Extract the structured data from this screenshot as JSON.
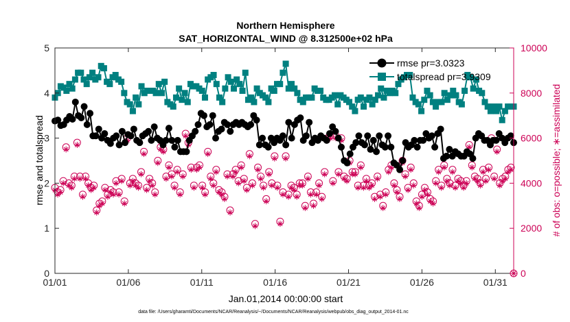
{
  "chart_data": {
    "type": "line",
    "title": "Northern Hemisphere",
    "subtitle": "SAT_HORIZONTAL_WIND @ 8.312500e+02 hPa",
    "xlabel": "Jan.01,2014 00:00:00 start",
    "ylabel_left": "rmse and totalspread",
    "ylabel_right": "# of obs: o=possible; ∗=assimilated",
    "footnote": "data file: /Users/gharamti/Documents/NCAR/Reanalysis/~/Documents/NCAR/Reanalysis/webpub/obs_diag_output_2014-01.nc",
    "xlim": [
      0,
      31.25
    ],
    "ylim_left": [
      0,
      5
    ],
    "ylim_right": [
      0,
      10000
    ],
    "xticks": [
      0,
      5,
      10,
      15,
      20,
      25,
      30
    ],
    "xtick_labels": [
      "01/01",
      "01/06",
      "01/11",
      "01/16",
      "01/21",
      "01/26",
      "01/31"
    ],
    "yticks_left": [
      "0",
      "1",
      "2",
      "3",
      "4",
      "5"
    ],
    "yticks_right": [
      "0",
      "2000",
      "4000",
      "6000",
      "8000",
      "10000"
    ],
    "grid": false,
    "legend_position": "top-right",
    "colors": {
      "rmse": "#000000",
      "totalspread": "#008080",
      "obs": "#cc0055"
    },
    "series": [
      {
        "name": "rmse pr=3.0323",
        "axis": "left",
        "marker": "circle",
        "values": [
          3.38,
          3.4,
          3.28,
          3.3,
          3.4,
          3.48,
          3.42,
          3.8,
          3.5,
          3.45,
          3.7,
          3.3,
          3.55,
          3.05,
          3.05,
          3.2,
          3.0,
          3.1,
          2.95,
          2.88,
          3.0,
          3.05,
          2.85,
          3.15,
          2.9,
          3.08,
          3.05,
          3.2,
          2.95,
          2.9,
          3.05,
          3.1,
          3.15,
          2.95,
          3.25,
          3.0,
          2.95,
          2.85,
          2.95,
          3.22,
          2.95,
          2.8,
          2.95,
          2.7,
          2.7,
          2.7,
          2.95,
          3.05,
          3.15,
          3.3,
          3.55,
          3.5,
          3.25,
          3.3,
          3.5,
          3.0,
          3.15,
          3.2,
          3.35,
          3.3,
          3.15,
          3.3,
          3.35,
          3.3,
          3.35,
          3.3,
          3.25,
          3.3,
          3.5,
          3.4,
          2.85,
          3.0,
          2.85,
          2.8,
          3.0,
          2.9,
          3.0,
          2.95,
          3.05,
          2.85,
          3.35,
          3.0,
          3.3,
          3.4,
          3.45,
          2.95,
          3.05,
          3.35,
          2.9,
          3.0,
          2.95,
          3.05,
          3.0,
          2.95,
          3.1,
          3.25,
          3.15,
          3.0,
          2.8,
          2.5,
          2.45,
          2.65,
          2.8,
          2.9,
          3.05,
          2.9,
          2.85,
          3.05,
          2.75,
          2.95,
          2.7,
          3.05,
          2.85,
          2.8,
          3.05,
          2.8,
          2.45,
          2.4,
          2.3,
          2.5,
          2.9,
          2.8,
          2.85,
          2.95,
          2.8,
          2.95,
          2.95,
          3.1,
          3.0,
          3.05,
          2.8,
          3.1,
          3.2,
          2.55,
          2.6,
          2.75,
          2.6,
          2.7,
          2.65,
          2.6,
          2.6,
          2.7,
          2.65,
          2.55,
          3.0,
          3.1,
          3.05,
          2.95,
          2.95,
          2.85,
          2.95,
          2.95,
          3.1,
          3.0,
          2.9,
          3.0,
          3.05,
          2.9
        ]
      },
      {
        "name": "totalspread pr=3.9309",
        "axis": "left",
        "marker": "square",
        "values": [
          3.9,
          4.0,
          4.15,
          4.12,
          4.05,
          4.2,
          4.1,
          4.3,
          4.45,
          4.45,
          4.3,
          4.2,
          4.35,
          4.45,
          4.3,
          4.35,
          4.6,
          4.55,
          4.25,
          4.2,
          4.35,
          4.4,
          4.3,
          4.25,
          4.0,
          3.8,
          3.75,
          3.6,
          3.9,
          3.75,
          4.15,
          4.0,
          4.05,
          4.05,
          4.05,
          4.0,
          4.2,
          4.0,
          4.25,
          3.8,
          3.75,
          3.7,
          3.9,
          4.1,
          3.85,
          4.0,
          3.8,
          4.2,
          4.15,
          4.15,
          4.1,
          4.05,
          3.9,
          4.3,
          4.35,
          4.4,
          4.2,
          3.9,
          3.8,
          4.1,
          4.35,
          4.25,
          4.1,
          4.3,
          4.2,
          4.05,
          4.45,
          3.85,
          3.9,
          3.8,
          4.1,
          4.0,
          3.95,
          3.9,
          3.8,
          4.1,
          4.05,
          4.2,
          4.2,
          4.45,
          4.65,
          4.1,
          4.2,
          4.1,
          4.0,
          3.85,
          3.8,
          3.9,
          3.9,
          3.9,
          4.1,
          4.05,
          4.05,
          3.9,
          3.85,
          3.85,
          3.9,
          3.95,
          3.75,
          3.95,
          3.9,
          3.85,
          3.8,
          3.7,
          3.6,
          3.85,
          3.9,
          3.7,
          3.85,
          3.9,
          3.75,
          3.85,
          3.95,
          4.1,
          3.9,
          4.05,
          4.0,
          4.05,
          4.0,
          4.2,
          4.3,
          4.35,
          4.4,
          4.4,
          3.9,
          3.8,
          3.75,
          3.6,
          3.85,
          4.05,
          3.95,
          3.8,
          3.7,
          3.8,
          3.8,
          4.0,
          3.85,
          3.95,
          4.05,
          3.95,
          3.8,
          3.75,
          4.05,
          4.4,
          4.35,
          4.1,
          4.3,
          4.05,
          4.0,
          3.8,
          3.7,
          3.6,
          3.7,
          3.6,
          3.7,
          3.4,
          3.6,
          3.7,
          3.7,
          3.7
        ]
      },
      {
        "name": "possible",
        "axis": "right",
        "marker": "circle-open",
        "values": [
          3800,
          3600,
          3700,
          4100,
          5600,
          4000,
          3900,
          4300,
          5800,
          4300,
          3500,
          4300,
          4000,
          3800,
          3900,
          2800,
          3100,
          3200,
          3800,
          3500,
          3700,
          3600,
          4100,
          3600,
          4200,
          3200,
          6000,
          4000,
          4200,
          4000,
          3900,
          4500,
          5400,
          3800,
          4200,
          4000,
          3600,
          5000,
          5600,
          5500,
          4300,
          4800,
          4400,
          3900,
          4600,
          3600,
          4400,
          6200,
          5800,
          4700,
          3900,
          4700,
          4800,
          3900,
          3600,
          5400,
          4300,
          4000,
          4600,
          3700,
          3600,
          3400,
          4400,
          2800,
          4400,
          4600,
          4100,
          4800,
          4200,
          3800,
          5300,
          4000,
          2200,
          4700,
          4300,
          3900,
          3300,
          4500,
          4000,
          5200,
          3900,
          2300,
          3600,
          5200,
          3500,
          3900,
          3800,
          3500,
          4000,
          4000,
          3000,
          4300,
          3600,
          3100,
          3600,
          4000,
          3400,
          4500,
          6000,
          6100,
          4100,
          6100,
          4500,
          6000,
          4300,
          4200,
          5000,
          4500,
          4500,
          3900,
          4800,
          3900,
          4200,
          3900,
          4000,
          3400,
          4300,
          3500,
          3000,
          3600,
          4600,
          4800,
          4000,
          3700,
          3400,
          5000,
          4400,
          3800,
          4700,
          4000,
          3200,
          3000,
          3500,
          3800,
          3600,
          3300,
          3200,
          4100,
          4600,
          3900,
          4800,
          4200,
          4000,
          4600,
          3900,
          4200,
          4100,
          3900,
          4100,
          5700,
          4800,
          4300,
          4200,
          4000,
          4600,
          4200,
          4700,
          6000,
          4300,
          5500,
          4000,
          4200,
          4300,
          4600,
          4700,
          0
        ]
      },
      {
        "name": "assimilated",
        "axis": "right",
        "marker": "star",
        "values": [
          3700,
          3500,
          3600,
          4000,
          5500,
          3900,
          3800,
          4200,
          5700,
          4200,
          3400,
          4200,
          3900,
          3700,
          3800,
          2700,
          3000,
          3100,
          3700,
          3400,
          3600,
          3500,
          4000,
          3500,
          4100,
          3100,
          5900,
          3900,
          4100,
          3900,
          3800,
          4400,
          5300,
          3700,
          4100,
          3900,
          3500,
          4900,
          5500,
          5400,
          4200,
          4700,
          4300,
          3800,
          4500,
          3500,
          4300,
          6100,
          5700,
          4600,
          3800,
          4600,
          4700,
          3800,
          3500,
          5300,
          4200,
          3900,
          4500,
          3600,
          3500,
          3300,
          4300,
          2700,
          4300,
          4500,
          4000,
          4700,
          4100,
          3700,
          5200,
          3900,
          2100,
          4600,
          4200,
          3800,
          3200,
          4400,
          3900,
          5100,
          3800,
          2200,
          3500,
          5100,
          3400,
          3800,
          3700,
          3400,
          3900,
          3900,
          2900,
          4200,
          3500,
          3000,
          3500,
          3900,
          3300,
          4400,
          5900,
          6000,
          4000,
          6000,
          4400,
          5900,
          4200,
          4100,
          4900,
          4400,
          4400,
          3800,
          4700,
          3800,
          4100,
          3800,
          3900,
          3300,
          4200,
          3400,
          2900,
          3500,
          4500,
          4700,
          3900,
          3600,
          3300,
          4900,
          4300,
          3700,
          4600,
          3900,
          3100,
          2900,
          3400,
          3700,
          3500,
          3200,
          3100,
          4000,
          4500,
          3800,
          4700,
          4100,
          3900,
          4500,
          3800,
          4100,
          4000,
          3800,
          4000,
          5600,
          4700,
          4200,
          4100,
          3900,
          4500,
          4100,
          4600,
          5900,
          4200,
          5400,
          3900,
          4100,
          4200,
          4500,
          4600,
          0
        ]
      }
    ]
  }
}
